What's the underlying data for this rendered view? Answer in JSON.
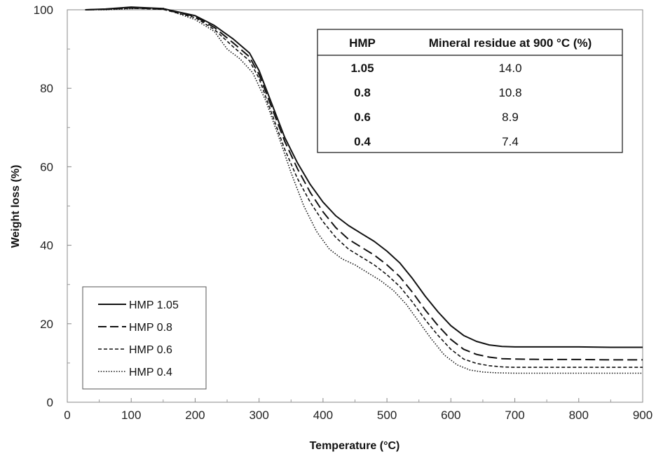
{
  "chart_data": {
    "type": "line",
    "title": "",
    "xlabel": "Temperature (°C)",
    "ylabel": "Weight loss (%)",
    "xlim": [
      0,
      900
    ],
    "ylim": [
      0,
      100
    ],
    "xticks": [
      0,
      100,
      200,
      300,
      400,
      500,
      600,
      700,
      800,
      900
    ],
    "yticks": [
      0,
      20,
      40,
      60,
      80,
      100
    ],
    "grid": false,
    "legend_position": "bottom-left",
    "series": [
      {
        "name": "HMP 1.05",
        "style": "solid",
        "x": [
          28,
          60,
          100,
          150,
          200,
          230,
          260,
          285,
          300,
          320,
          340,
          360,
          380,
          400,
          420,
          440,
          460,
          480,
          500,
          520,
          540,
          560,
          580,
          600,
          620,
          640,
          660,
          680,
          700,
          750,
          800,
          850,
          900
        ],
        "y": [
          100.0,
          100.2,
          100.7,
          100.3,
          98.5,
          96.0,
          92.5,
          89.0,
          84.5,
          76.0,
          67.5,
          61.0,
          55.5,
          51.0,
          47.5,
          45.0,
          43.0,
          41.0,
          38.5,
          35.5,
          31.5,
          27.0,
          23.0,
          19.5,
          17.0,
          15.5,
          14.6,
          14.2,
          14.1,
          14.1,
          14.1,
          14.0,
          14.0
        ]
      },
      {
        "name": "HMP 0.8",
        "style": "long-dash",
        "x": [
          28,
          60,
          100,
          150,
          200,
          230,
          260,
          285,
          300,
          320,
          340,
          360,
          380,
          400,
          420,
          440,
          460,
          480,
          500,
          520,
          540,
          560,
          580,
          600,
          620,
          640,
          660,
          680,
          700,
          750,
          800,
          850,
          900
        ],
        "y": [
          100.0,
          100.1,
          100.5,
          100.2,
          98.3,
          95.5,
          91.5,
          88.0,
          83.5,
          75.0,
          66.5,
          59.5,
          53.5,
          48.5,
          44.5,
          41.5,
          39.5,
          37.5,
          35.0,
          32.0,
          28.0,
          23.5,
          19.5,
          16.0,
          13.5,
          12.2,
          11.5,
          11.1,
          11.0,
          10.9,
          10.9,
          10.8,
          10.8
        ]
      },
      {
        "name": "HMP 0.6",
        "style": "short-dash",
        "x": [
          28,
          60,
          100,
          150,
          200,
          230,
          260,
          285,
          300,
          320,
          340,
          360,
          380,
          400,
          420,
          440,
          460,
          480,
          500,
          520,
          540,
          560,
          580,
          600,
          620,
          640,
          660,
          680,
          700,
          750,
          800,
          850,
          900
        ],
        "y": [
          100.0,
          100.1,
          100.4,
          100.1,
          98.0,
          95.0,
          90.5,
          87.0,
          82.5,
          73.5,
          64.5,
          57.0,
          51.0,
          46.0,
          42.0,
          39.0,
          37.0,
          35.0,
          32.5,
          29.5,
          25.5,
          21.0,
          17.0,
          13.5,
          11.0,
          9.9,
          9.3,
          9.0,
          8.9,
          8.9,
          8.9,
          8.9,
          8.9
        ]
      },
      {
        "name": "HMP 0.4",
        "style": "dotted",
        "x": [
          28,
          60,
          100,
          150,
          200,
          230,
          250,
          270,
          290,
          310,
          330,
          350,
          370,
          390,
          410,
          430,
          450,
          470,
          490,
          510,
          530,
          550,
          570,
          590,
          610,
          630,
          650,
          670,
          700,
          750,
          800,
          850,
          900
        ],
        "y": [
          100.0,
          100.0,
          100.3,
          100.4,
          97.5,
          94.5,
          90.0,
          87.5,
          84.0,
          77.0,
          68.0,
          58.5,
          50.0,
          43.5,
          39.0,
          36.5,
          35.0,
          33.0,
          31.0,
          28.5,
          25.0,
          20.5,
          16.0,
          12.0,
          9.5,
          8.2,
          7.7,
          7.5,
          7.4,
          7.4,
          7.4,
          7.4,
          7.4
        ]
      }
    ],
    "inset_table": {
      "headers": [
        "HMP",
        "Mineral residue at 900 °C (%)"
      ],
      "rows": [
        [
          "1.05",
          "14.0"
        ],
        [
          "0.8",
          "10.8"
        ],
        [
          "0.6",
          "8.9"
        ],
        [
          "0.4",
          "7.4"
        ]
      ]
    }
  }
}
